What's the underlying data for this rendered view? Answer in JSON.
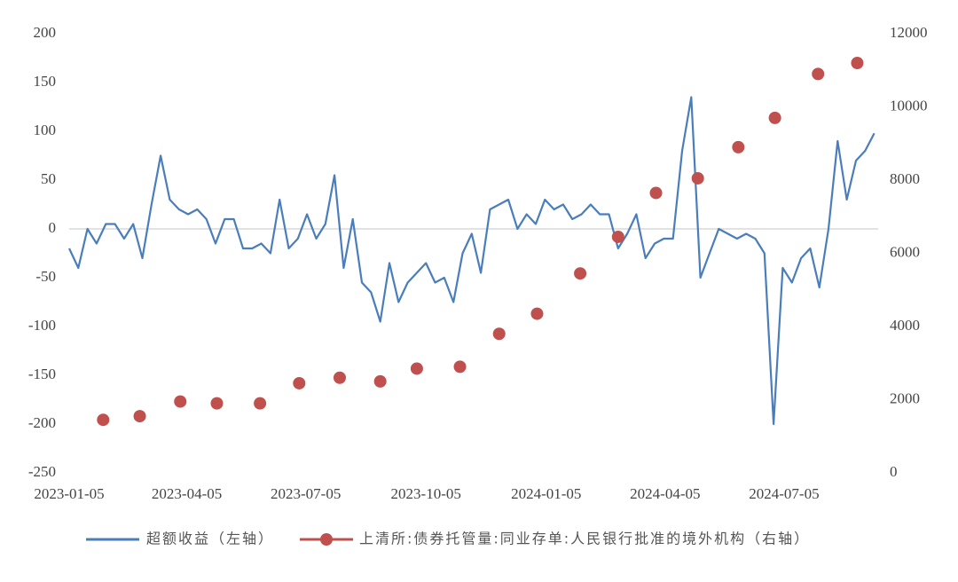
{
  "chart_data": {
    "type": "combo",
    "xlim": [
      "2023-01-05",
      "2024-09-15"
    ],
    "xticks": [
      "2023-01-05",
      "2023-04-05",
      "2023-07-05",
      "2023-10-05",
      "2024-01-05",
      "2024-04-05",
      "2024-07-05"
    ],
    "ylim": [
      -250,
      200
    ],
    "yticks": [
      -250,
      -200,
      -150,
      -100,
      -50,
      0,
      50,
      100,
      150,
      200
    ],
    "y2lim": [
      0,
      12000
    ],
    "y2ticks": [
      0,
      2000,
      4000,
      6000,
      8000,
      10000,
      12000
    ],
    "zero_line": true,
    "series": [
      {
        "name": "超额收益（左轴）",
        "type": "line",
        "color": "#4a7ebb",
        "x": [
          "2023-01-05",
          "2023-01-12",
          "2023-01-19",
          "2023-01-26",
          "2023-02-02",
          "2023-02-09",
          "2023-02-16",
          "2023-02-23",
          "2023-03-02",
          "2023-03-09",
          "2023-03-16",
          "2023-03-23",
          "2023-03-30",
          "2023-04-06",
          "2023-04-13",
          "2023-04-20",
          "2023-04-27",
          "2023-05-04",
          "2023-05-11",
          "2023-05-18",
          "2023-05-25",
          "2023-06-01",
          "2023-06-08",
          "2023-06-15",
          "2023-06-22",
          "2023-06-29",
          "2023-07-06",
          "2023-07-13",
          "2023-07-20",
          "2023-07-27",
          "2023-08-03",
          "2023-08-10",
          "2023-08-17",
          "2023-08-24",
          "2023-08-31",
          "2023-09-07",
          "2023-09-14",
          "2023-09-21",
          "2023-09-28",
          "2023-10-05",
          "2023-10-12",
          "2023-10-19",
          "2023-10-26",
          "2023-11-02",
          "2023-11-09",
          "2023-11-16",
          "2023-11-23",
          "2023-11-30",
          "2023-12-07",
          "2023-12-14",
          "2023-12-21",
          "2023-12-28",
          "2024-01-04",
          "2024-01-11",
          "2024-01-18",
          "2024-01-25",
          "2024-02-01",
          "2024-02-08",
          "2024-02-15",
          "2024-02-22",
          "2024-02-29",
          "2024-03-07",
          "2024-03-14",
          "2024-03-21",
          "2024-03-28",
          "2024-04-04",
          "2024-04-11",
          "2024-04-18",
          "2024-04-25",
          "2024-05-02",
          "2024-05-09",
          "2024-05-16",
          "2024-05-23",
          "2024-05-30",
          "2024-06-06",
          "2024-06-13",
          "2024-06-20",
          "2024-06-27",
          "2024-07-04",
          "2024-07-11",
          "2024-07-18",
          "2024-07-25",
          "2024-08-01",
          "2024-08-08",
          "2024-08-15",
          "2024-08-22",
          "2024-08-29",
          "2024-09-05",
          "2024-09-12"
        ],
        "values": [
          -20,
          -40,
          0,
          -15,
          5,
          5,
          -10,
          5,
          -30,
          25,
          75,
          30,
          20,
          15,
          20,
          10,
          -15,
          10,
          10,
          -20,
          -20,
          -15,
          -25,
          30,
          -20,
          -10,
          15,
          -10,
          5,
          55,
          -40,
          10,
          -55,
          -65,
          -95,
          -35,
          -75,
          -55,
          -45,
          -35,
          -55,
          -50,
          -75,
          -25,
          -5,
          -45,
          20,
          25,
          30,
          0,
          15,
          5,
          30,
          20,
          25,
          10,
          15,
          25,
          15,
          15,
          -20,
          -5,
          15,
          -30,
          -15,
          -10,
          -10,
          80,
          135,
          -50,
          -25,
          0,
          -5,
          -10,
          -5,
          -10,
          -25,
          -200,
          -40,
          -55,
          -30,
          -20,
          -60,
          0,
          90,
          30,
          70,
          80,
          98
        ]
      },
      {
        "name": "上清所:债券托管量:同业存单:人民银行批准的境外机构（右轴）",
        "type": "scatter",
        "axis": "y2",
        "color": "#c0504d",
        "x": [
          "2023-01-31",
          "2023-02-28",
          "2023-03-31",
          "2023-04-28",
          "2023-05-31",
          "2023-06-30",
          "2023-07-31",
          "2023-08-31",
          "2023-09-28",
          "2023-10-31",
          "2023-11-30",
          "2023-12-29",
          "2024-01-31",
          "2024-02-29",
          "2024-03-29",
          "2024-04-30",
          "2024-05-31",
          "2024-06-28",
          "2024-07-31",
          "2024-08-30"
        ],
        "values": [
          1450,
          1550,
          1950,
          1900,
          1900,
          2450,
          2600,
          2500,
          2850,
          2900,
          3800,
          4350,
          5450,
          6450,
          7650,
          8050,
          8900,
          9700,
          10900,
          11200
        ]
      }
    ]
  }
}
